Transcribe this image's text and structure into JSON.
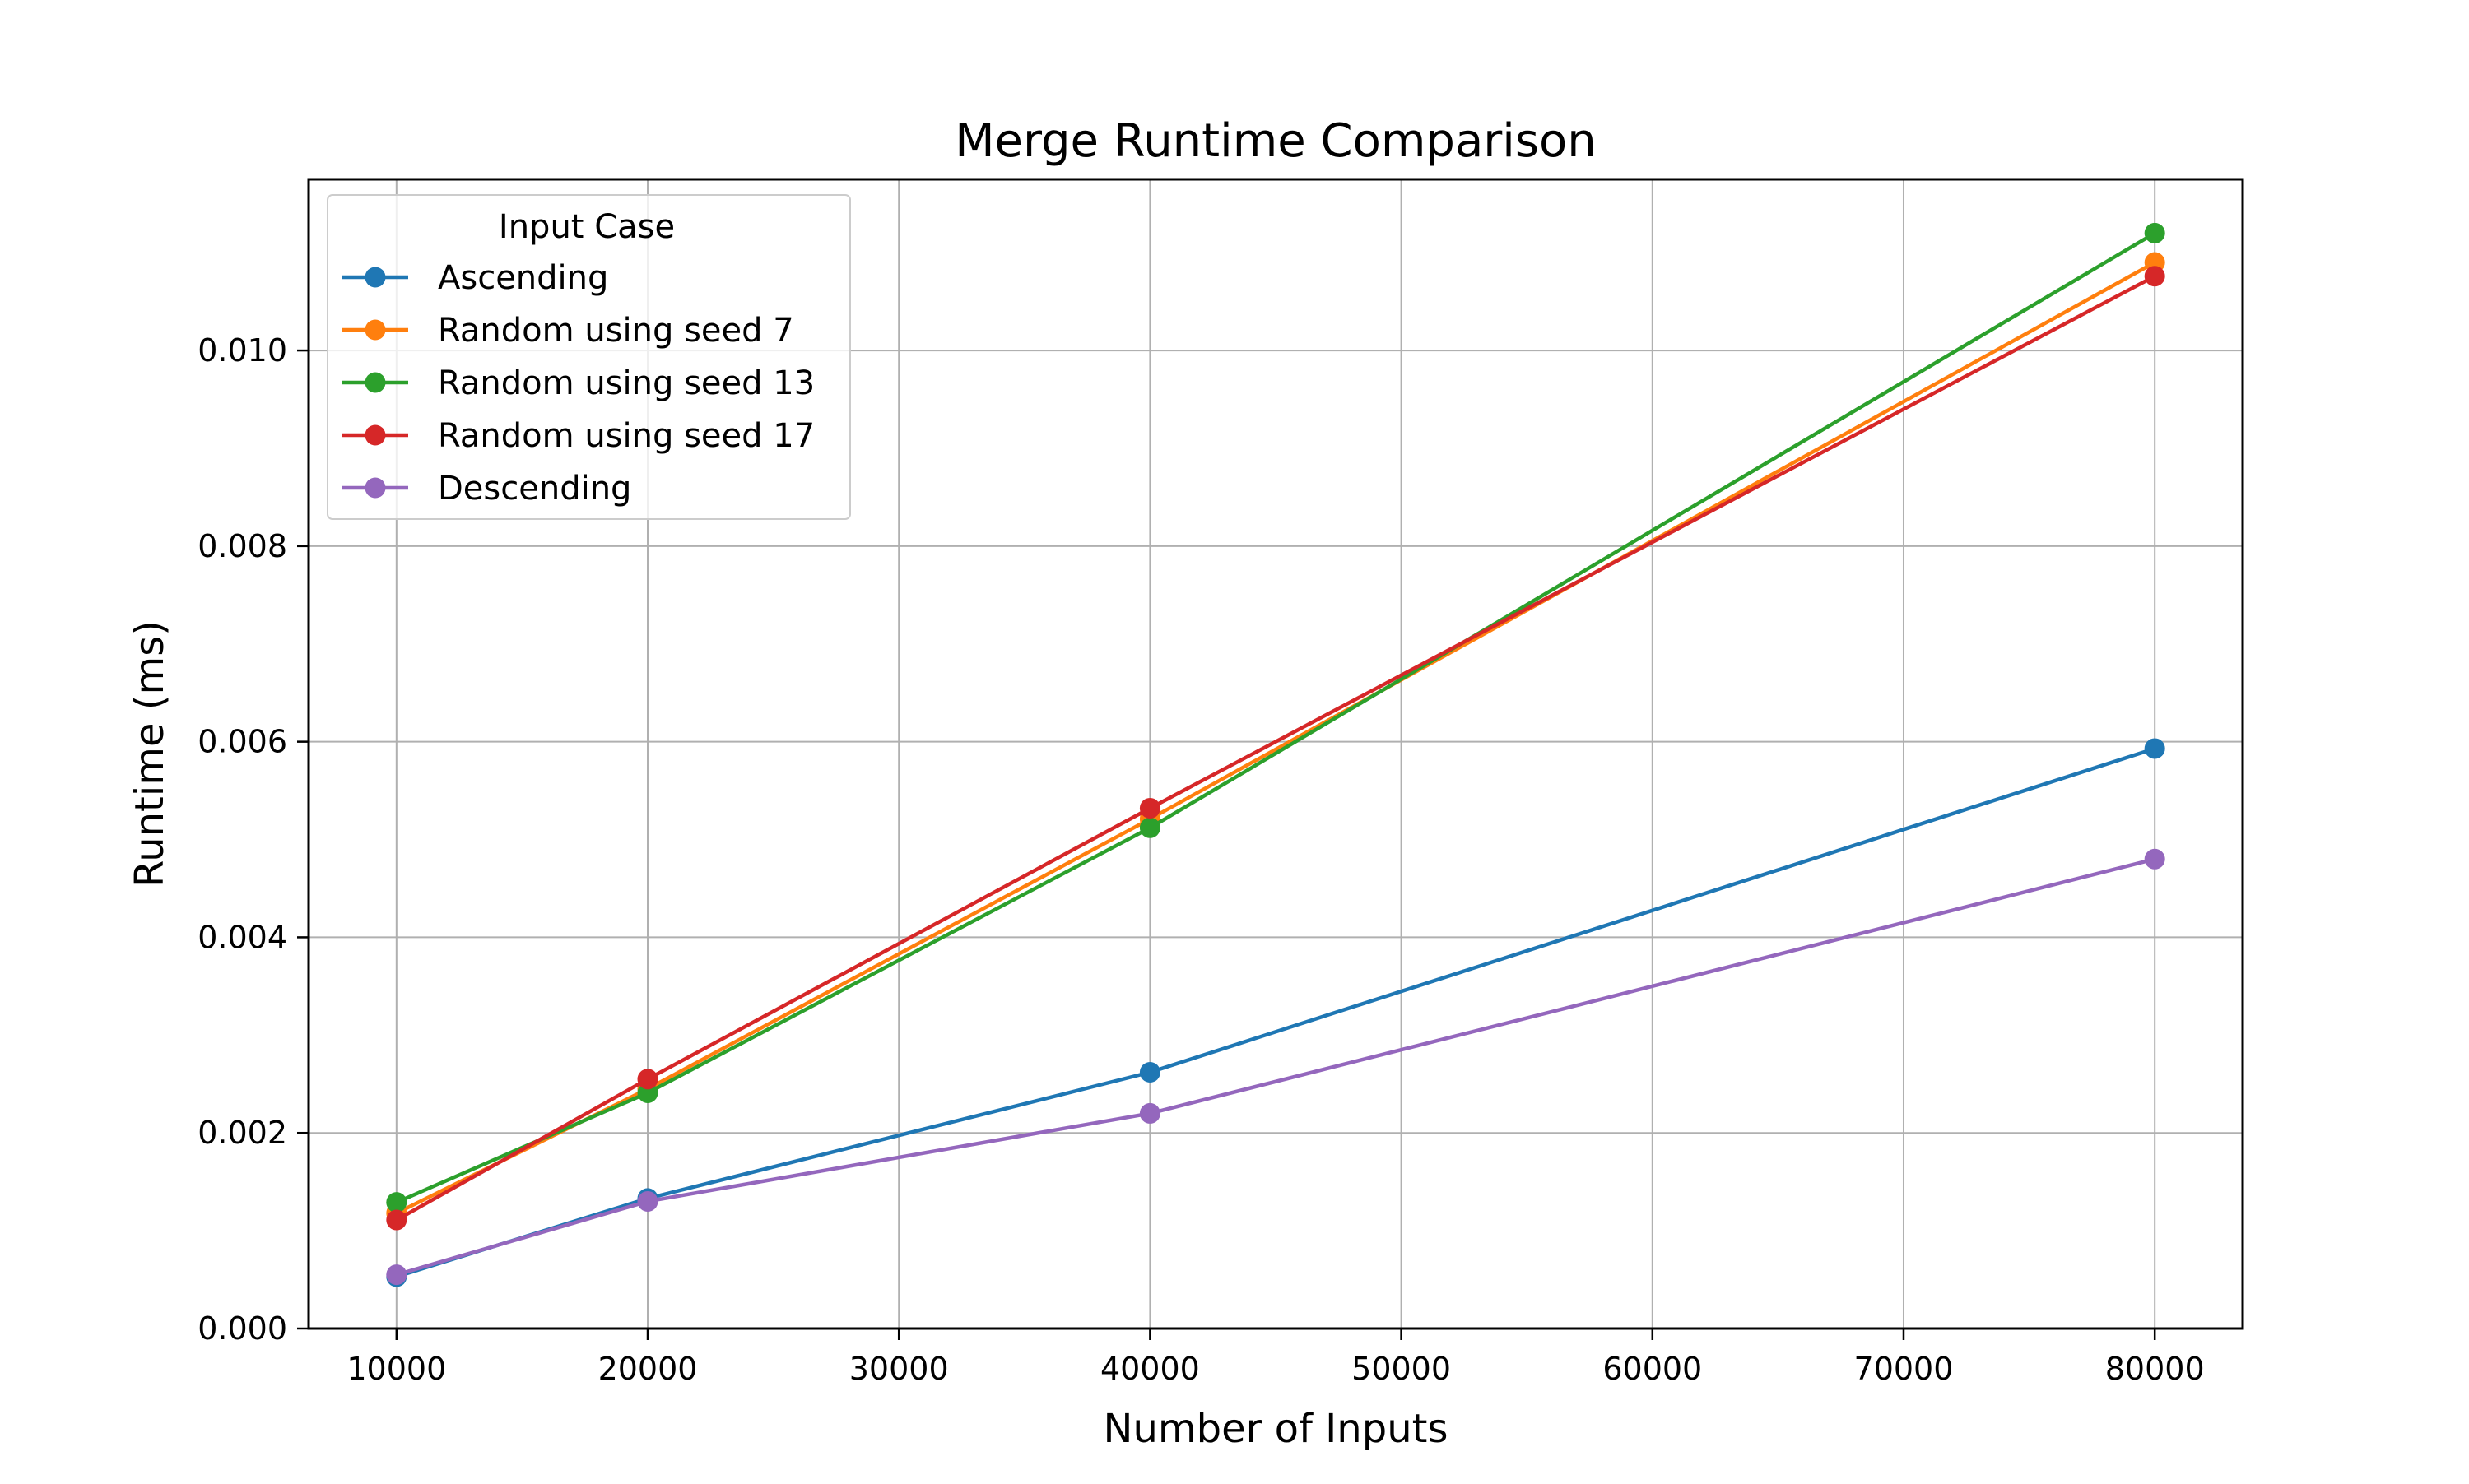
{
  "chart_data": {
    "type": "line",
    "title": "Merge Runtime Comparison",
    "xlabel": "Number of Inputs",
    "ylabel": "Runtime (ms)",
    "x": [
      10000,
      20000,
      40000,
      80000
    ],
    "xlim": [
      6500,
      83500
    ],
    "ylim": [
      0,
      0.01175
    ],
    "xticks": [
      10000,
      20000,
      30000,
      40000,
      50000,
      60000,
      70000,
      80000
    ],
    "xtick_labels": [
      "10000",
      "20000",
      "30000",
      "40000",
      "50000",
      "60000",
      "70000",
      "80000"
    ],
    "yticks": [
      0,
      0.002,
      0.004,
      0.006,
      0.008,
      0.01
    ],
    "ytick_labels": [
      "0.000",
      "0.002",
      "0.004",
      "0.006",
      "0.008",
      "0.010"
    ],
    "grid": true,
    "legend": {
      "title": "Input Case",
      "position": "top-left"
    },
    "marker": "circle",
    "series": [
      {
        "name": "Ascending",
        "color": "#1f77b4",
        "values": [
          0.00053,
          0.00133,
          0.00262,
          0.00593
        ]
      },
      {
        "name": "Random using seed 7",
        "color": "#ff7f0e",
        "values": [
          0.00118,
          0.00245,
          0.00521,
          0.0109
        ]
      },
      {
        "name": "Random using seed 13",
        "color": "#2ca02c",
        "values": [
          0.00129,
          0.00241,
          0.00512,
          0.0112
        ]
      },
      {
        "name": "Random using seed 17",
        "color": "#d62728",
        "values": [
          0.00111,
          0.00255,
          0.00532,
          0.01076
        ]
      },
      {
        "name": "Descending",
        "color": "#9467bd",
        "values": [
          0.00055,
          0.0013,
          0.0022,
          0.0048
        ]
      }
    ]
  }
}
